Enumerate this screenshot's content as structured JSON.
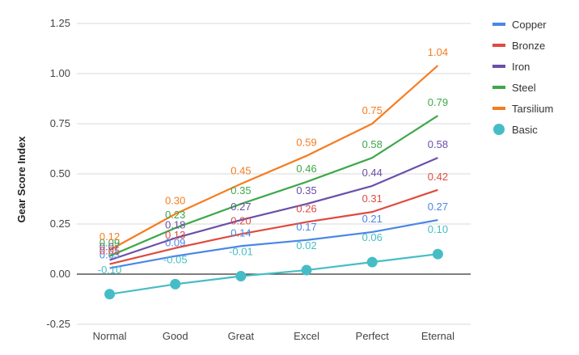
{
  "chart_data": {
    "type": "line",
    "title": "",
    "xlabel": "",
    "ylabel": "Gear Score Index",
    "ylim": [
      -0.25,
      1.25
    ],
    "yticks": [
      -0.25,
      0.0,
      0.25,
      0.5,
      0.75,
      1.0,
      1.25
    ],
    "ytick_labels": [
      "-0.25",
      "0.00",
      "0.25",
      "0.50",
      "0.75",
      "1.00",
      "1.25"
    ],
    "categories": [
      "Normal",
      "Good",
      "Great",
      "Excel",
      "Perfect",
      "Eternal"
    ],
    "grid": true,
    "legend_position": "right",
    "series": [
      {
        "name": "Copper",
        "color": "#4a86e8",
        "style": "line",
        "values": [
          0.03,
          0.09,
          0.14,
          0.17,
          0.21,
          0.27
        ],
        "labels": [
          "0.03",
          "0.09",
          "0.14",
          "0.17",
          "0.21",
          "0.27"
        ]
      },
      {
        "name": "Bronze",
        "color": "#e04a3f",
        "style": "line",
        "values": [
          0.05,
          0.13,
          0.2,
          0.26,
          0.31,
          0.42
        ],
        "labels": [
          "0.05",
          "0.13",
          "0.20",
          "0.26",
          "0.31",
          "0.42"
        ]
      },
      {
        "name": "Iron",
        "color": "#6a4fa8",
        "style": "line",
        "values": [
          0.07,
          0.18,
          0.27,
          0.35,
          0.44,
          0.58
        ],
        "labels": [
          "0.07",
          "0.18",
          "0.27",
          "0.35",
          "0.44",
          "0.58"
        ]
      },
      {
        "name": "Steel",
        "color": "#3da84a",
        "style": "line",
        "values": [
          0.09,
          0.23,
          0.35,
          0.46,
          0.58,
          0.79
        ],
        "labels": [
          "0.09",
          "0.23",
          "0.35",
          "0.46",
          "0.58",
          "0.79"
        ]
      },
      {
        "name": "Tarsilium",
        "color": "#f57c1f",
        "style": "line",
        "values": [
          0.12,
          0.3,
          0.45,
          0.59,
          0.75,
          1.04
        ],
        "labels": [
          "0.12",
          "0.30",
          "0.45",
          "0.59",
          "0.75",
          "1.04"
        ]
      },
      {
        "name": "Basic",
        "color": "#46bdc6",
        "style": "line-markers",
        "values": [
          -0.1,
          -0.05,
          -0.01,
          0.02,
          0.06,
          0.1
        ],
        "labels": [
          "-0.10",
          "-0.05",
          "-0.01",
          "0.02",
          "0.06",
          "0.10"
        ]
      }
    ]
  }
}
